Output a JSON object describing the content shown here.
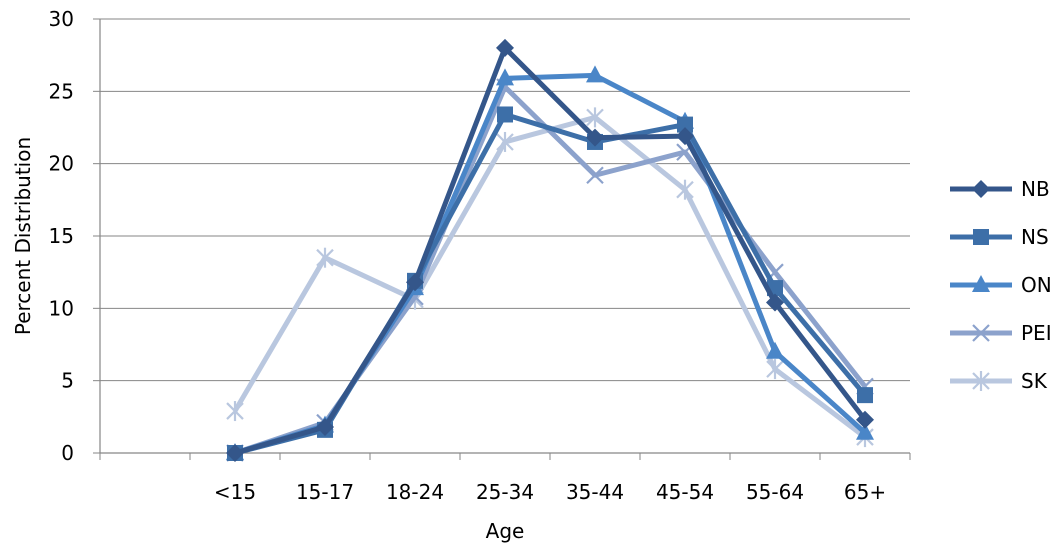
{
  "chart_data": {
    "type": "line",
    "categories": [
      "",
      "<15",
      "15-17",
      "18-24",
      "25-34",
      "35-44",
      "45-54",
      "55-64",
      "65+"
    ],
    "xlabel": "Age",
    "ylabel": "Percent Distribution",
    "ylim": [
      0,
      30
    ],
    "yticks": [
      "0",
      "5",
      "10",
      "15",
      "20",
      "25",
      "30"
    ],
    "grid": true,
    "legend_position": "right",
    "series": [
      {
        "name": "NB",
        "marker": "diamond",
        "color": "#34568a",
        "values": [
          null,
          0.0,
          1.8,
          11.8,
          28.0,
          21.8,
          21.9,
          10.4,
          2.3
        ]
      },
      {
        "name": "NS",
        "marker": "square",
        "color": "#3d6fa8",
        "values": [
          null,
          0.0,
          1.6,
          11.9,
          23.4,
          21.5,
          22.7,
          11.4,
          4.0
        ]
      },
      {
        "name": "ON",
        "marker": "triangle",
        "color": "#4a86c8",
        "values": [
          null,
          0.0,
          1.9,
          11.4,
          25.9,
          26.1,
          22.9,
          7.0,
          1.4
        ]
      },
      {
        "name": "PEI",
        "marker": "x",
        "color": "#8ca2cc",
        "values": [
          null,
          0.0,
          2.1,
          10.8,
          25.3,
          19.2,
          20.8,
          12.5,
          4.6
        ]
      },
      {
        "name": "SK",
        "marker": "star",
        "color": "#b9c7df",
        "values": [
          null,
          2.9,
          13.5,
          10.6,
          21.5,
          23.2,
          18.2,
          5.8,
          1.1
        ]
      }
    ]
  }
}
